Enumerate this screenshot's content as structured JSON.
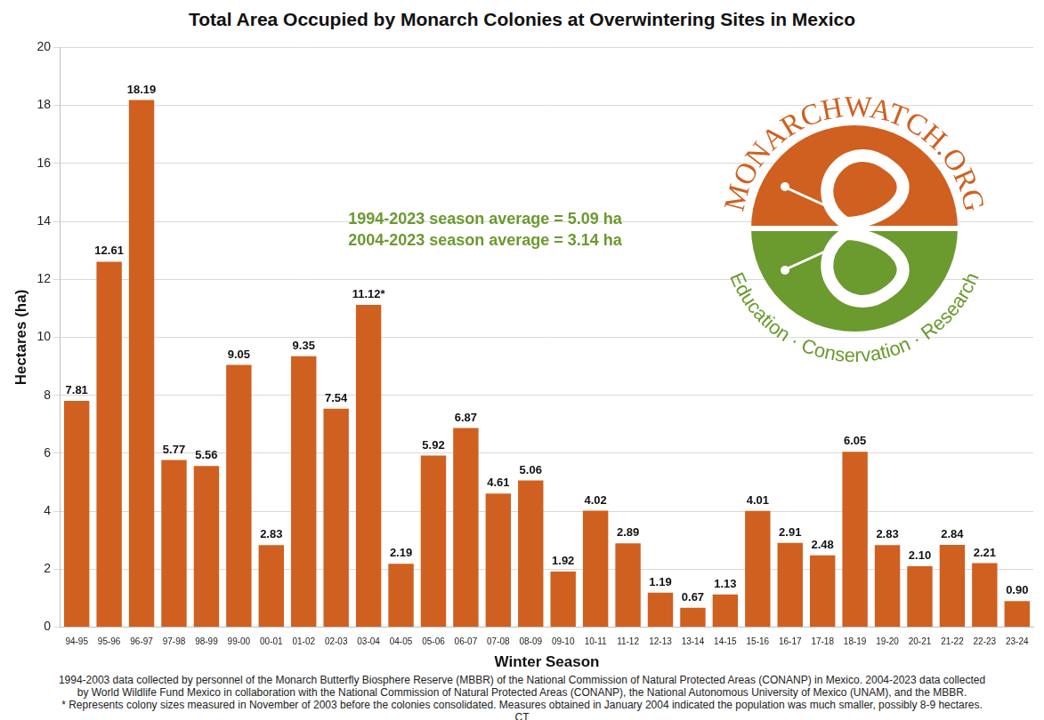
{
  "chart_data": {
    "type": "bar",
    "title": "Total Area Occupied by Monarch Colonies at Overwintering Sites in Mexico",
    "x_label": "Winter Season",
    "y_label": "Hectares (ha)",
    "categories": [
      "94-95",
      "95-96",
      "96-97",
      "97-98",
      "98-99",
      "99-00",
      "00-01",
      "01-02",
      "02-03",
      "03-04",
      "04-05",
      "05-06",
      "06-07",
      "07-08",
      "08-09",
      "09-10",
      "10-11",
      "11-12",
      "12-13",
      "13-14",
      "14-15",
      "15-16",
      "16-17",
      "17-18",
      "18-19",
      "19-20",
      "20-21",
      "21-22",
      "22-23",
      "23-24"
    ],
    "values": [
      7.81,
      12.61,
      18.19,
      5.77,
      5.56,
      9.05,
      2.83,
      9.35,
      7.54,
      11.12,
      2.19,
      5.92,
      6.87,
      4.61,
      5.06,
      1.92,
      4.02,
      2.89,
      1.19,
      0.67,
      1.13,
      4.01,
      2.91,
      2.48,
      6.05,
      2.83,
      2.1,
      2.84,
      2.21,
      0.9
    ],
    "value_labels": [
      "7.81",
      "12.61",
      "18.19",
      "5.77",
      "5.56",
      "9.05",
      "2.83",
      "9.35",
      "7.54",
      "11.12*",
      "2.19",
      "5.92",
      "6.87",
      "4.61",
      "5.06",
      "1.92",
      "4.02",
      "2.89",
      "1.19",
      "0.67",
      "1.13",
      "4.01",
      "2.91",
      "2.48",
      "6.05",
      "2.83",
      "2.10",
      "2.84",
      "2.21",
      "0.90"
    ],
    "color": "#d0601f",
    "ylim": [
      0,
      20
    ],
    "yticks": [
      0,
      2,
      4,
      6,
      8,
      10,
      12,
      14,
      16,
      18,
      20
    ],
    "grid": true,
    "data_labels": true,
    "annotations": [
      "1994-2023 season average = 5.09 ha",
      "2004-2023 season average = 3.14 ha"
    ],
    "logo_text": [
      "MONARCHWATCH.ORG",
      "Education · Conservation · Research"
    ],
    "notes": [
      "1994-2003 data collected by personnel of the Monarch Butterfly Biosphere Reserve (MBBR) of the National Commission of Natural Protected Areas (CONANP) in Mexico. 2004-2023 data collected by World Wildlife Fund Mexico in collaboration with the National Commission of Natural Protected Areas (CONANP), the National Autonomous University of Mexico (UNAM), and the MBBR.",
      "* Represents colony sizes measured in November of 2003 before the colonies consolidated. Measures obtained in January 2004 indicated the population was much smaller, possibly 8-9 hectares. CT"
    ]
  }
}
